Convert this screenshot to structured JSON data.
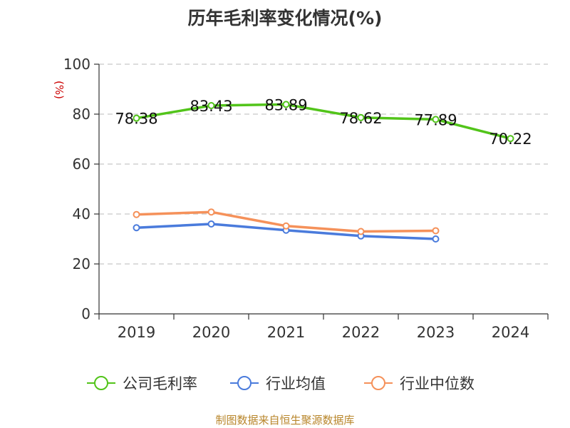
{
  "chart_data": {
    "type": "line",
    "title": "历年毛利率变化情况(%)",
    "ylabel": "(%)",
    "xlabel": "",
    "categories": [
      "2019",
      "2020",
      "2021",
      "2022",
      "2023",
      "2024"
    ],
    "ylim": [
      0,
      100
    ],
    "yticks": [
      0,
      20,
      40,
      60,
      80,
      100
    ],
    "grid": true,
    "legend_position": "bottom",
    "series": [
      {
        "name": "公司毛利率",
        "color": "#52c41a",
        "values": [
          78.38,
          83.43,
          83.89,
          78.62,
          77.89,
          70.22
        ],
        "labels": [
          "78.38",
          "83.43",
          "83.89",
          "78.62",
          "77.89",
          "70.22"
        ]
      },
      {
        "name": "行业均值",
        "color": "#4a7bdc",
        "values": [
          34.5,
          36.0,
          33.5,
          31.2,
          30.0,
          null
        ]
      },
      {
        "name": "行业中位数",
        "color": "#f5915a",
        "values": [
          39.8,
          40.8,
          35.2,
          33.0,
          33.3,
          null
        ]
      }
    ]
  },
  "source_note": "制图数据来自恒生聚源数据库"
}
